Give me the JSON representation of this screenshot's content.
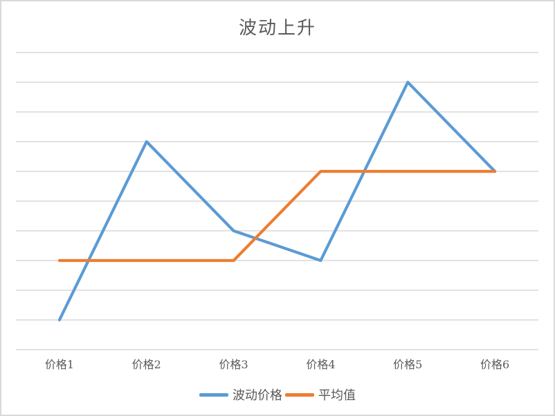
{
  "chart_data": {
    "type": "line",
    "title": "波动上升",
    "categories": [
      "价格1",
      "价格2",
      "价格3",
      "价格4",
      "价格5",
      "价格6"
    ],
    "series": [
      {
        "name": "波动价格",
        "values": [
          1,
          7,
          4,
          3,
          9,
          6
        ],
        "color": "#5B9BD5"
      },
      {
        "name": "平均值",
        "values": [
          3,
          3,
          3,
          6,
          6,
          6
        ],
        "color": "#ED7D31"
      }
    ],
    "xlabel": "",
    "ylabel": "",
    "ylim": [
      0,
      10
    ],
    "y_gridline_count": 11,
    "y_tick_labels_visible": false,
    "grid": "horizontal",
    "legend_position": "bottom"
  },
  "colors": {
    "background": "#FFFFFF",
    "border": "#D9D9D9",
    "gridline": "#D9D9D9",
    "text": "#595959"
  }
}
